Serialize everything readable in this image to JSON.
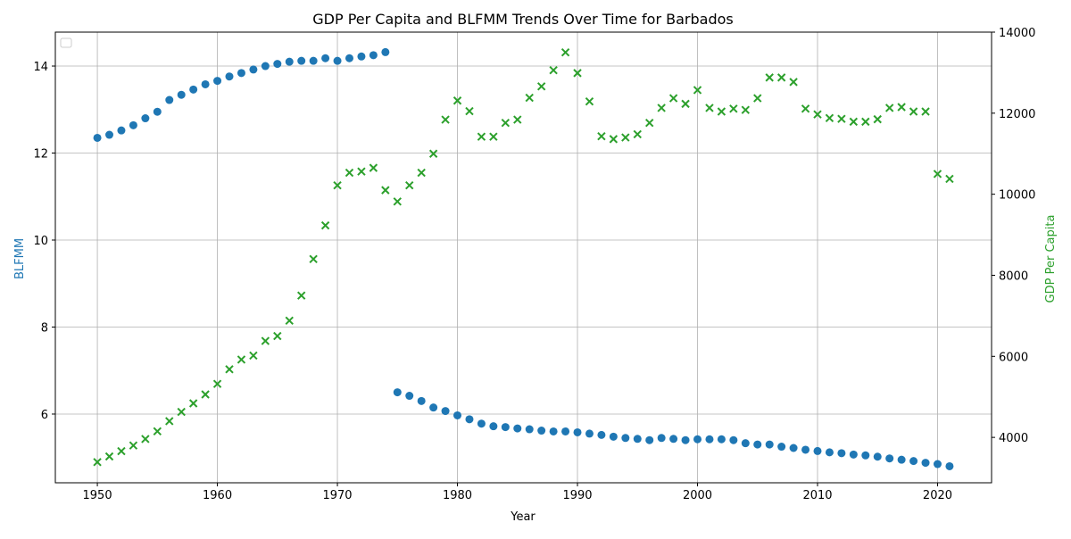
{
  "chart_data": {
    "type": "scatter",
    "title": "GDP Per Capita and BLFMM Trends Over Time for Barbados",
    "xlabel": "Year",
    "ylabel_left": "BLFMM",
    "ylabel_right": "GDP Per Capita",
    "xlim": [
      1946.5,
      2024.5
    ],
    "ylim_left": [
      4.42,
      14.78
    ],
    "ylim_right": [
      2880,
      14000
    ],
    "x_ticks": [
      1950,
      1960,
      1970,
      1980,
      1990,
      2000,
      2010,
      2020
    ],
    "y_left_ticks": [
      6,
      8,
      10,
      12,
      14
    ],
    "y_right_ticks": [
      4000,
      6000,
      8000,
      10000,
      12000,
      14000
    ],
    "grid": true,
    "legend": "top-left (empty)",
    "colors": {
      "blfmm": "#1f77b4",
      "gdp": "#2ca02c",
      "grid": "#b0b0b0",
      "axis": "#000000"
    },
    "series": [
      {
        "name": "BLFMM",
        "axis": "left",
        "marker": "circle",
        "x": [
          1950,
          1951,
          1952,
          1953,
          1954,
          1955,
          1956,
          1957,
          1958,
          1959,
          1960,
          1961,
          1962,
          1963,
          1964,
          1965,
          1966,
          1967,
          1968,
          1969,
          1970,
          1971,
          1972,
          1973,
          1974,
          1975,
          1976,
          1977,
          1978,
          1979,
          1980,
          1981,
          1982,
          1983,
          1984,
          1985,
          1986,
          1987,
          1988,
          1989,
          1990,
          1991,
          1992,
          1993,
          1994,
          1995,
          1996,
          1997,
          1998,
          1999,
          2000,
          2001,
          2002,
          2003,
          2004,
          2005,
          2006,
          2007,
          2008,
          2009,
          2010,
          2011,
          2012,
          2013,
          2014,
          2015,
          2016,
          2017,
          2018,
          2019,
          2020,
          2021
        ],
        "y": [
          12.35,
          12.42,
          12.52,
          12.64,
          12.8,
          12.95,
          13.22,
          13.34,
          13.46,
          13.58,
          13.66,
          13.76,
          13.84,
          13.92,
          14.0,
          14.05,
          14.1,
          14.12,
          14.12,
          14.18,
          14.12,
          14.18,
          14.22,
          14.25,
          14.32,
          6.5,
          6.42,
          6.3,
          6.15,
          6.07,
          5.97,
          5.88,
          5.78,
          5.72,
          5.7,
          5.67,
          5.65,
          5.62,
          5.6,
          5.6,
          5.58,
          5.55,
          5.52,
          5.48,
          5.45,
          5.43,
          5.4,
          5.45,
          5.43,
          5.4,
          5.42,
          5.42,
          5.42,
          5.4,
          5.33,
          5.3,
          5.3,
          5.25,
          5.22,
          5.18,
          5.15,
          5.12,
          5.1,
          5.07,
          5.05,
          5.02,
          4.98,
          4.95,
          4.92,
          4.88,
          4.85,
          4.8
        ]
      },
      {
        "name": "GDP Per Capita",
        "axis": "right",
        "marker": "x",
        "x": [
          1950,
          1951,
          1952,
          1953,
          1954,
          1955,
          1956,
          1957,
          1958,
          1959,
          1960,
          1961,
          1962,
          1963,
          1964,
          1965,
          1966,
          1967,
          1968,
          1969,
          1970,
          1971,
          1972,
          1973,
          1974,
          1975,
          1976,
          1977,
          1978,
          1979,
          1980,
          1981,
          1982,
          1983,
          1984,
          1985,
          1986,
          1987,
          1988,
          1989,
          1990,
          1991,
          1992,
          1993,
          1994,
          1995,
          1996,
          1997,
          1998,
          1999,
          2000,
          2001,
          2002,
          2003,
          2004,
          2005,
          2006,
          2007,
          2008,
          2009,
          2010,
          2011,
          2012,
          2013,
          2014,
          2015,
          2016,
          2017,
          2018,
          2019,
          2020,
          2021
        ],
        "y": [
          3390,
          3530,
          3660,
          3800,
          3960,
          4150,
          4400,
          4630,
          4840,
          5060,
          5320,
          5680,
          5920,
          6020,
          6380,
          6500,
          6880,
          7500,
          8400,
          9230,
          10220,
          10530,
          10560,
          10650,
          10100,
          9820,
          10220,
          10530,
          11000,
          11840,
          12310,
          12050,
          11420,
          11420,
          11760,
          11840,
          12380,
          12660,
          13060,
          13500,
          12990,
          12290,
          11430,
          11360,
          11400,
          11480,
          11760,
          12130,
          12370,
          12230,
          12570,
          12130,
          12040,
          12110,
          12080,
          12370,
          12880,
          12880,
          12770,
          12110,
          11970,
          11880,
          11860,
          11790,
          11790,
          11850,
          12130,
          12150,
          12040,
          12040,
          10500,
          10380
        ]
      }
    ]
  }
}
